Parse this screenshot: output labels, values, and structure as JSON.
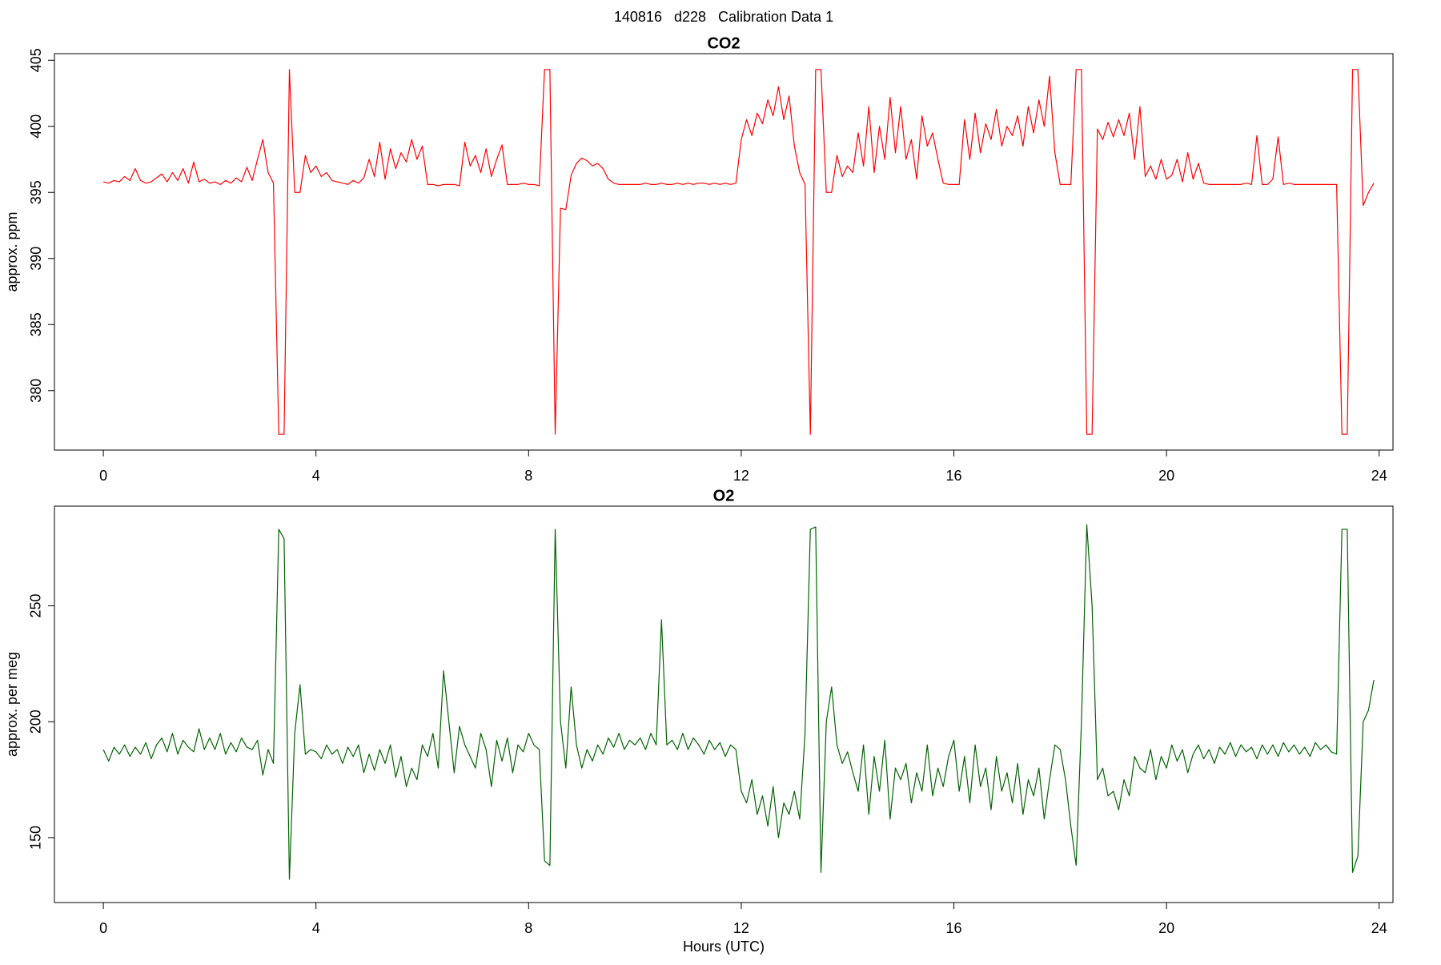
{
  "suptitle": "140816   d228   Calibration Data 1",
  "chart_data": [
    {
      "type": "line",
      "title": "CO2",
      "ylabel": "approx. ppm",
      "color": "#ff0000",
      "xlim": [
        -0.92,
        24.26
      ],
      "ylim": [
        375.5,
        405.5
      ],
      "xticks": [
        0,
        4,
        8,
        12,
        16,
        20,
        24
      ],
      "yticks": [
        380,
        385,
        390,
        395,
        400,
        405
      ],
      "x": [
        0,
        0.1,
        0.2,
        0.3,
        0.4,
        0.5,
        0.6,
        0.7,
        0.8,
        0.9,
        1,
        1.1,
        1.2,
        1.3,
        1.4,
        1.5,
        1.6,
        1.7,
        1.8,
        1.9,
        2,
        2.1,
        2.2,
        2.3,
        2.4,
        2.5,
        2.6,
        2.7,
        2.8,
        2.9,
        3,
        3.1,
        3.2,
        3.3,
        3.4,
        3.5,
        3.6,
        3.7,
        3.8,
        3.9,
        4,
        4.1,
        4.2,
        4.3,
        4.4,
        4.5,
        4.6,
        4.7,
        4.8,
        4.9,
        5,
        5.1,
        5.2,
        5.3,
        5.4,
        5.5,
        5.6,
        5.7,
        5.8,
        5.9,
        6,
        6.1,
        6.2,
        6.3,
        6.4,
        6.5,
        6.6,
        6.7,
        6.8,
        6.9,
        7,
        7.1,
        7.2,
        7.3,
        7.4,
        7.5,
        7.6,
        7.7,
        7.8,
        7.9,
        8,
        8.1,
        8.2,
        8.3,
        8.4,
        8.5,
        8.6,
        8.7,
        8.8,
        8.9,
        9,
        9.1,
        9.2,
        9.3,
        9.4,
        9.5,
        9.6,
        9.7,
        9.8,
        9.9,
        10,
        10.1,
        10.2,
        10.3,
        10.4,
        10.5,
        10.6,
        10.7,
        10.8,
        10.9,
        11,
        11.1,
        11.2,
        11.3,
        11.4,
        11.5,
        11.6,
        11.7,
        11.8,
        11.9,
        12,
        12.1,
        12.2,
        12.3,
        12.4,
        12.5,
        12.6,
        12.7,
        12.8,
        12.9,
        13,
        13.1,
        13.2,
        13.3,
        13.4,
        13.5,
        13.6,
        13.7,
        13.8,
        13.9,
        14,
        14.1,
        14.2,
        14.3,
        14.4,
        14.5,
        14.6,
        14.7,
        14.8,
        14.9,
        15,
        15.1,
        15.2,
        15.3,
        15.4,
        15.5,
        15.6,
        15.7,
        15.8,
        15.9,
        16,
        16.1,
        16.2,
        16.3,
        16.4,
        16.5,
        16.6,
        16.7,
        16.8,
        16.9,
        17,
        17.1,
        17.2,
        17.3,
        17.4,
        17.5,
        17.6,
        17.7,
        17.8,
        17.9,
        18,
        18.1,
        18.2,
        18.3,
        18.4,
        18.5,
        18.6,
        18.7,
        18.8,
        18.9,
        19,
        19.1,
        19.2,
        19.3,
        19.4,
        19.5,
        19.6,
        19.7,
        19.8,
        19.9,
        20,
        20.1,
        20.2,
        20.3,
        20.4,
        20.5,
        20.6,
        20.7,
        20.8,
        20.9,
        21,
        21.1,
        21.2,
        21.3,
        21.4,
        21.5,
        21.6,
        21.7,
        21.8,
        21.9,
        22,
        22.1,
        22.2,
        22.3,
        22.4,
        22.5,
        22.6,
        22.7,
        22.8,
        22.9,
        23,
        23.1,
        23.2,
        23.3,
        23.4,
        23.5,
        23.6,
        23.7,
        23.8,
        23.9
      ],
      "values": [
        395.8,
        395.7,
        395.9,
        395.8,
        396.2,
        395.9,
        396.8,
        395.9,
        395.7,
        395.8,
        396.1,
        396.4,
        395.8,
        396.5,
        395.9,
        396.8,
        395.7,
        397.3,
        395.8,
        396.0,
        395.7,
        395.8,
        395.6,
        395.9,
        395.7,
        396.1,
        395.8,
        396.9,
        395.9,
        397.5,
        399.0,
        396.5,
        395.7,
        376.7,
        376.7,
        404.3,
        395.0,
        395.0,
        397.8,
        396.5,
        397.0,
        396.2,
        396.5,
        395.9,
        395.8,
        395.7,
        395.6,
        395.9,
        395.7,
        396.1,
        397.5,
        396.2,
        398.8,
        396.0,
        398.3,
        396.8,
        398.0,
        397.3,
        399.0,
        397.5,
        398.5,
        395.6,
        395.6,
        395.5,
        395.6,
        395.6,
        395.6,
        395.5,
        398.8,
        397.0,
        397.8,
        396.5,
        398.3,
        396.2,
        397.5,
        398.6,
        395.6,
        395.6,
        395.6,
        395.7,
        395.6,
        395.6,
        395.5,
        404.3,
        404.3,
        376.7,
        393.8,
        393.7,
        396.3,
        397.2,
        397.6,
        397.4,
        397.0,
        397.2,
        396.8,
        396.0,
        395.7,
        395.6,
        395.6,
        395.6,
        395.6,
        395.6,
        395.7,
        395.6,
        395.6,
        395.7,
        395.6,
        395.6,
        395.7,
        395.6,
        395.7,
        395.6,
        395.7,
        395.7,
        395.6,
        395.7,
        395.6,
        395.7,
        395.6,
        395.7,
        399.0,
        400.5,
        399.3,
        401.0,
        400.2,
        402.0,
        400.8,
        403.0,
        400.5,
        402.3,
        398.5,
        396.5,
        395.6,
        376.7,
        404.3,
        404.3,
        395.0,
        395.0,
        397.8,
        396.2,
        397.0,
        396.5,
        399.5,
        397.0,
        401.5,
        396.5,
        400.0,
        397.5,
        402.2,
        398.0,
        401.5,
        397.5,
        399.0,
        396.0,
        400.8,
        398.5,
        399.5,
        397.5,
        395.7,
        395.6,
        395.6,
        395.6,
        400.5,
        397.5,
        401.0,
        398.0,
        400.2,
        399.0,
        401.3,
        398.5,
        400.0,
        399.3,
        400.8,
        398.5,
        401.5,
        399.5,
        402.0,
        400.0,
        403.8,
        398.0,
        395.6,
        395.6,
        395.6,
        404.3,
        404.3,
        376.7,
        376.7,
        399.8,
        399.0,
        400.3,
        399.2,
        400.5,
        399.3,
        401.0,
        397.5,
        401.5,
        396.2,
        397.0,
        396.0,
        397.5,
        396.0,
        396.3,
        397.5,
        395.8,
        398.0,
        396.0,
        397.2,
        395.7,
        395.6,
        395.6,
        395.6,
        395.6,
        395.6,
        395.6,
        395.6,
        395.7,
        395.6,
        399.3,
        395.6,
        395.6,
        396.0,
        399.2,
        395.6,
        395.7,
        395.6,
        395.6,
        395.6,
        395.6,
        395.6,
        395.6,
        395.6,
        395.6,
        395.6,
        376.7,
        376.7,
        404.3,
        404.3,
        394.0,
        395.0,
        395.7
      ]
    },
    {
      "type": "line",
      "title": "O2",
      "ylabel": "approx. per meg",
      "xlabel": "Hours (UTC)",
      "color": "#006400",
      "xlim": [
        -0.92,
        24.26
      ],
      "ylim": [
        122,
        293
      ],
      "xticks": [
        0,
        4,
        8,
        12,
        16,
        20,
        24
      ],
      "yticks": [
        150,
        200,
        250
      ],
      "x": [
        0,
        0.1,
        0.2,
        0.3,
        0.4,
        0.5,
        0.6,
        0.7,
        0.8,
        0.9,
        1,
        1.1,
        1.2,
        1.3,
        1.4,
        1.5,
        1.6,
        1.7,
        1.8,
        1.9,
        2,
        2.1,
        2.2,
        2.3,
        2.4,
        2.5,
        2.6,
        2.7,
        2.8,
        2.9,
        3,
        3.1,
        3.2,
        3.3,
        3.4,
        3.5,
        3.6,
        3.7,
        3.8,
        3.9,
        4,
        4.1,
        4.2,
        4.3,
        4.4,
        4.5,
        4.6,
        4.7,
        4.8,
        4.9,
        5,
        5.1,
        5.2,
        5.3,
        5.4,
        5.5,
        5.6,
        5.7,
        5.8,
        5.9,
        6,
        6.1,
        6.2,
        6.3,
        6.4,
        6.5,
        6.6,
        6.7,
        6.8,
        6.9,
        7,
        7.1,
        7.2,
        7.3,
        7.4,
        7.5,
        7.6,
        7.7,
        7.8,
        7.9,
        8,
        8.1,
        8.2,
        8.3,
        8.4,
        8.5,
        8.6,
        8.7,
        8.8,
        8.9,
        9,
        9.1,
        9.2,
        9.3,
        9.4,
        9.5,
        9.6,
        9.7,
        9.8,
        9.9,
        10,
        10.1,
        10.2,
        10.3,
        10.4,
        10.5,
        10.6,
        10.7,
        10.8,
        10.9,
        11,
        11.1,
        11.2,
        11.3,
        11.4,
        11.5,
        11.6,
        11.7,
        11.8,
        11.9,
        12,
        12.1,
        12.2,
        12.3,
        12.4,
        12.5,
        12.6,
        12.7,
        12.8,
        12.9,
        13,
        13.1,
        13.2,
        13.3,
        13.4,
        13.5,
        13.6,
        13.7,
        13.8,
        13.9,
        14,
        14.1,
        14.2,
        14.3,
        14.4,
        14.5,
        14.6,
        14.7,
        14.8,
        14.9,
        15,
        15.1,
        15.2,
        15.3,
        15.4,
        15.5,
        15.6,
        15.7,
        15.8,
        15.9,
        16,
        16.1,
        16.2,
        16.3,
        16.4,
        16.5,
        16.6,
        16.7,
        16.8,
        16.9,
        17,
        17.1,
        17.2,
        17.3,
        17.4,
        17.5,
        17.6,
        17.7,
        17.8,
        17.9,
        18,
        18.1,
        18.2,
        18.3,
        18.4,
        18.5,
        18.6,
        18.7,
        18.8,
        18.9,
        19,
        19.1,
        19.2,
        19.3,
        19.4,
        19.5,
        19.6,
        19.7,
        19.8,
        19.9,
        20,
        20.1,
        20.2,
        20.3,
        20.4,
        20.5,
        20.6,
        20.7,
        20.8,
        20.9,
        21,
        21.1,
        21.2,
        21.3,
        21.4,
        21.5,
        21.6,
        21.7,
        21.8,
        21.9,
        22,
        22.1,
        22.2,
        22.3,
        22.4,
        22.5,
        22.6,
        22.7,
        22.8,
        22.9,
        23,
        23.1,
        23.2,
        23.3,
        23.4,
        23.5,
        23.6,
        23.7,
        23.8,
        23.9
      ],
      "values": [
        188,
        183,
        189,
        186,
        190,
        185,
        189,
        186,
        191,
        184,
        190,
        193,
        187,
        195,
        186,
        192,
        189,
        187,
        197,
        188,
        193,
        188,
        195,
        186,
        191,
        187,
        193,
        189,
        188,
        192,
        177,
        188,
        182,
        283,
        279,
        132,
        195,
        216,
        186,
        188,
        187,
        184,
        190,
        186,
        188,
        182,
        189,
        185,
        190,
        178,
        186,
        179,
        188,
        182,
        190,
        176,
        185,
        172,
        180,
        175,
        190,
        185,
        195,
        180,
        222,
        200,
        178,
        198,
        190,
        185,
        180,
        195,
        188,
        172,
        192,
        183,
        193,
        178,
        190,
        187,
        195,
        190,
        188,
        140,
        138,
        283,
        200,
        180,
        215,
        190,
        180,
        188,
        183,
        190,
        186,
        193,
        189,
        195,
        188,
        192,
        190,
        193,
        188,
        195,
        190,
        244,
        190,
        192,
        188,
        195,
        188,
        193,
        190,
        186,
        192,
        188,
        191,
        185,
        190,
        188,
        170,
        165,
        175,
        160,
        168,
        155,
        172,
        150,
        165,
        160,
        170,
        158,
        195,
        283,
        284,
        135,
        200,
        215,
        190,
        182,
        187,
        178,
        170,
        190,
        160,
        185,
        170,
        192,
        158,
        180,
        175,
        182,
        165,
        178,
        170,
        190,
        168,
        180,
        172,
        185,
        192,
        170,
        185,
        165,
        190,
        172,
        180,
        162,
        185,
        170,
        178,
        165,
        182,
        160,
        175,
        168,
        180,
        158,
        175,
        190,
        188,
        175,
        155,
        138,
        200,
        285,
        250,
        175,
        180,
        168,
        170,
        162,
        175,
        168,
        185,
        180,
        178,
        188,
        175,
        185,
        180,
        190,
        183,
        188,
        178,
        186,
        190,
        184,
        188,
        182,
        189,
        186,
        191,
        185,
        190,
        187,
        189,
        184,
        190,
        186,
        190,
        185,
        191,
        187,
        190,
        186,
        189,
        185,
        191,
        188,
        190,
        187,
        186,
        283,
        283,
        135,
        142,
        200,
        205,
        218
      ]
    }
  ]
}
